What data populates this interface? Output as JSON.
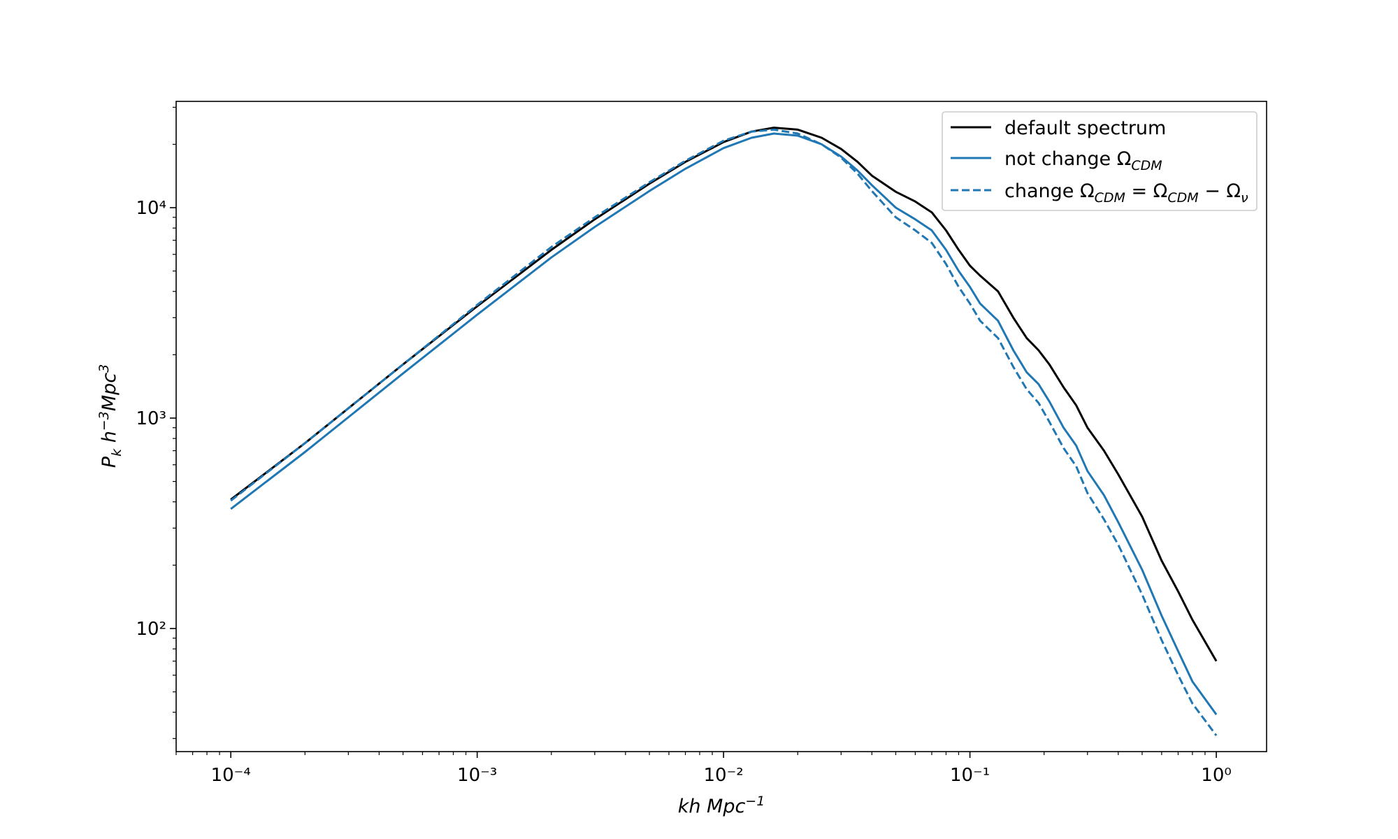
{
  "chart_data": {
    "type": "line",
    "title": "",
    "xlabel": "kh Mpc⁻¹",
    "ylabel": "P_k h⁻³Mpc³",
    "xscale": "log",
    "yscale": "log",
    "xlim": [
      6e-05,
      1.6
    ],
    "ylim": [
      26,
      32000
    ],
    "grid": false,
    "legend_position": "top-right",
    "x_ticks": [
      {
        "value": 0.0001,
        "label": "10⁻⁴"
      },
      {
        "value": 0.001,
        "label": "10⁻³"
      },
      {
        "value": 0.01,
        "label": "10⁻²"
      },
      {
        "value": 0.1,
        "label": "10⁻¹"
      },
      {
        "value": 1,
        "label": "10⁰"
      }
    ],
    "y_ticks": [
      {
        "value": 100,
        "label": "10²"
      },
      {
        "value": 1000,
        "label": "10³"
      },
      {
        "value": 10000,
        "label": "10⁴"
      }
    ],
    "x": [
      0.0001,
      0.0002,
      0.0005,
      0.001,
      0.002,
      0.003,
      0.005,
      0.007,
      0.01,
      0.013,
      0.016,
      0.02,
      0.025,
      0.03,
      0.035,
      0.04,
      0.05,
      0.06,
      0.07,
      0.08,
      0.09,
      0.1,
      0.11,
      0.13,
      0.15,
      0.17,
      0.19,
      0.21,
      0.24,
      0.27,
      0.3,
      0.35,
      0.4,
      0.5,
      0.6,
      0.7,
      0.8,
      1.0
    ],
    "series": [
      {
        "name": "default spectrum",
        "color": "#000000",
        "style": "solid",
        "values": [
          410,
          760,
          1800,
          3400,
          6300,
          8800,
          13000,
          16500,
          20500,
          23000,
          24000,
          23500,
          21500,
          19000,
          16500,
          14200,
          11900,
          10700,
          9500,
          7800,
          6300,
          5300,
          4750,
          4000,
          3000,
          2400,
          2100,
          1800,
          1400,
          1150,
          900,
          700,
          540,
          340,
          210,
          150,
          110,
          70
        ]
      },
      {
        "name": "not change Ω_CDM",
        "color": "#1f77b4",
        "style": "solid",
        "values": [
          370,
          690,
          1630,
          3100,
          5800,
          8100,
          12000,
          15300,
          19200,
          21500,
          22500,
          22000,
          20000,
          17500,
          15000,
          12800,
          10000,
          8800,
          7800,
          6300,
          5000,
          4200,
          3500,
          2900,
          2100,
          1650,
          1450,
          1200,
          900,
          740,
          560,
          430,
          320,
          190,
          115,
          78,
          56,
          39
        ]
      },
      {
        "name": "change Ω_CDM = Ω_CDM − Ω_ν",
        "color": "#1f77b4",
        "style": "dashed",
        "values": [
          405,
          760,
          1800,
          3450,
          6500,
          9000,
          13200,
          16700,
          20800,
          23000,
          23500,
          22500,
          20000,
          17300,
          14500,
          12000,
          9000,
          7800,
          6800,
          5400,
          4200,
          3500,
          2900,
          2400,
          1750,
          1370,
          1180,
          960,
          720,
          590,
          440,
          330,
          250,
          145,
          88,
          60,
          44,
          31
        ]
      }
    ],
    "legend": [
      {
        "label": "default spectrum"
      },
      {
        "label": "not change Ω",
        "sub": "CDM"
      },
      {
        "label": "change Ω",
        "sub": "CDM",
        "mid": " = Ω",
        "sub2": "CDM",
        "mid2": " − Ω",
        "sub3": "ν"
      }
    ]
  }
}
